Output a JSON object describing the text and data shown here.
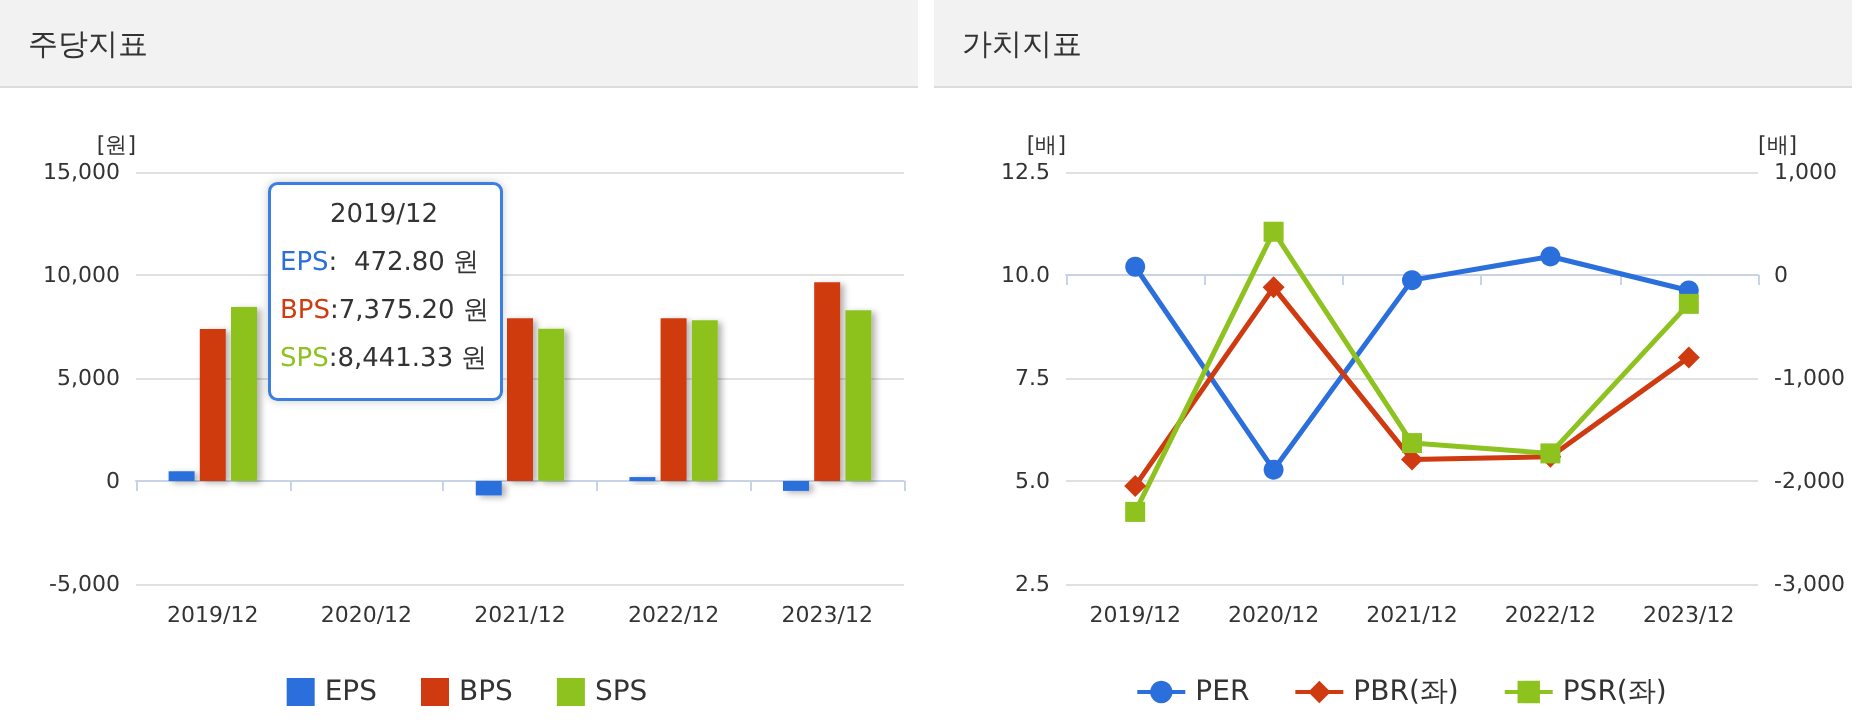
{
  "chart_data": [
    {
      "type": "bar",
      "title": "주당지표",
      "ylabel": "[원]",
      "categories": [
        "2019/12",
        "2020/12",
        "2021/12",
        "2022/12",
        "2023/12"
      ],
      "series": [
        {
          "name": "EPS",
          "color": "#2a6fdc",
          "values": [
            472.8,
            null,
            -700,
            190,
            -480
          ]
        },
        {
          "name": "BPS",
          "color": "#d03a10",
          "values": [
            7375.2,
            null,
            7900,
            7900,
            9650
          ]
        },
        {
          "name": "SPS",
          "color": "#8dc21f",
          "values": [
            8441.33,
            null,
            7390,
            7800,
            8290
          ]
        }
      ],
      "ylim": [
        -5000,
        15000
      ],
      "yticks": [
        {
          "value": -5000,
          "label": "-5,000"
        },
        0,
        {
          "value": 5000,
          "label": "5,000"
        },
        {
          "value": 10000,
          "label": "10,000"
        },
        {
          "value": 15000,
          "label": "15,000"
        }
      ],
      "grid": "y",
      "legend": "bottom",
      "annotations": [
        "2019/12",
        "EPS:  472.80 원",
        "BPS:7,375.20 원",
        "SPS:8,441.33 원"
      ]
    },
    {
      "type": "line",
      "title": "가치지표",
      "ylabel": "[배]",
      "y2label": "[배]",
      "categories": [
        "2019/12",
        "2020/12",
        "2021/12",
        "2022/12",
        "2023/12"
      ],
      "series": [
        {
          "name": "PER",
          "color": "#2a6fdc",
          "axis": "y2",
          "marker": "circle",
          "values": [
            80,
            -1890,
            -50,
            180,
            -150
          ]
        },
        {
          "name": "PBR(좌)",
          "color": "#d03a10",
          "marker": "diamond",
          "values": [
            4.88,
            9.7,
            5.52,
            5.59,
            8.0
          ]
        },
        {
          "name": "PSR(좌)",
          "color": "#8dc21f",
          "marker": "square",
          "values": [
            4.25,
            11.05,
            5.92,
            5.67,
            9.3
          ]
        }
      ],
      "ylim": [
        2.5,
        12.5
      ],
      "yticks": [
        2.5,
        {
          "value": 5,
          "label": "5.0"
        },
        7.5,
        {
          "value": 10,
          "label": "10.0"
        },
        12.5
      ],
      "y2lim": [
        -3000,
        1000
      ],
      "y2ticks": [
        {
          "value": -3000,
          "label": "-3,000"
        },
        {
          "value": -2000,
          "label": "-2,000"
        },
        {
          "value": -1000,
          "label": "-1,000"
        },
        0,
        {
          "value": 1000,
          "label": "1,000"
        }
      ],
      "grid": "y",
      "legend": "bottom"
    }
  ]
}
